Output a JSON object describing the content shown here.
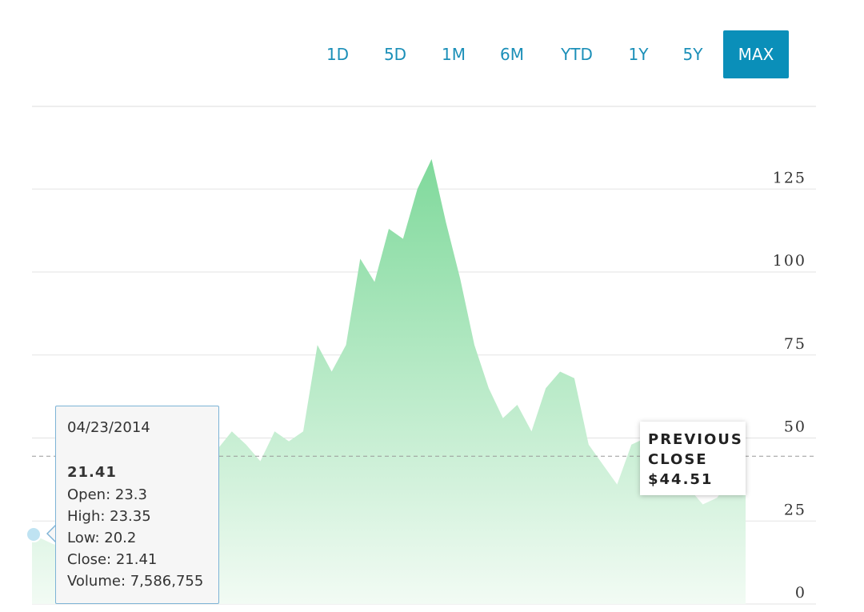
{
  "range_buttons": [
    {
      "label": "1D",
      "active": false
    },
    {
      "label": "5D",
      "active": false
    },
    {
      "label": "1M",
      "active": false
    },
    {
      "label": "6M",
      "active": false
    },
    {
      "label": "YTD",
      "active": false
    },
    {
      "label": "1Y",
      "active": false
    },
    {
      "label": "5Y",
      "active": false
    },
    {
      "label": "MAX",
      "active": true
    }
  ],
  "tooltip": {
    "date": "04/23/2014",
    "close_value": "21.41",
    "open": "Open: 23.3",
    "high": "High: 23.35",
    "low": "Low: 20.2",
    "close": "Close: 21.41",
    "volume": "Volume: 7,586,755"
  },
  "previous_close": {
    "line1": "PREVIOUS",
    "line2": "CLOSE",
    "value": "$44.51"
  },
  "colors": {
    "accent": "#0a8fb9",
    "area_top": "#7fd99b",
    "area_bottom": "#f2fbf4",
    "tooltip_border": "#7db3d6"
  },
  "chart_data": {
    "type": "area",
    "ylim": [
      0,
      150
    ],
    "yticks": [
      0,
      25,
      50,
      75,
      100,
      125
    ],
    "grid": true,
    "previous_close": 44.51,
    "series": [
      {
        "x": [
          0,
          0.03,
          0.06,
          0.09,
          0.12,
          0.15,
          0.18,
          0.2,
          0.23,
          0.25,
          0.28,
          0.3,
          0.32,
          0.34,
          0.36,
          0.38,
          0.4,
          0.42,
          0.44,
          0.46,
          0.48,
          0.5,
          0.52,
          0.54,
          0.56,
          0.58,
          0.6,
          0.62,
          0.64,
          0.66,
          0.68,
          0.7,
          0.72,
          0.74,
          0.76,
          0.78,
          0.8,
          0.82,
          0.84,
          0.86,
          0.88,
          0.9,
          0.92,
          0.94,
          0.96,
          0.98,
          1.0
        ],
        "values": [
          21,
          18,
          17,
          13,
          12,
          20,
          26,
          29,
          36,
          44,
          52,
          48,
          43,
          52,
          49,
          52,
          78,
          70,
          78,
          104,
          97,
          113,
          110,
          125,
          134,
          115,
          98,
          78,
          65,
          56,
          60,
          52,
          65,
          70,
          68,
          48,
          42,
          36,
          48,
          50,
          46,
          38,
          35,
          30,
          32,
          38,
          40
        ]
      }
    ]
  }
}
